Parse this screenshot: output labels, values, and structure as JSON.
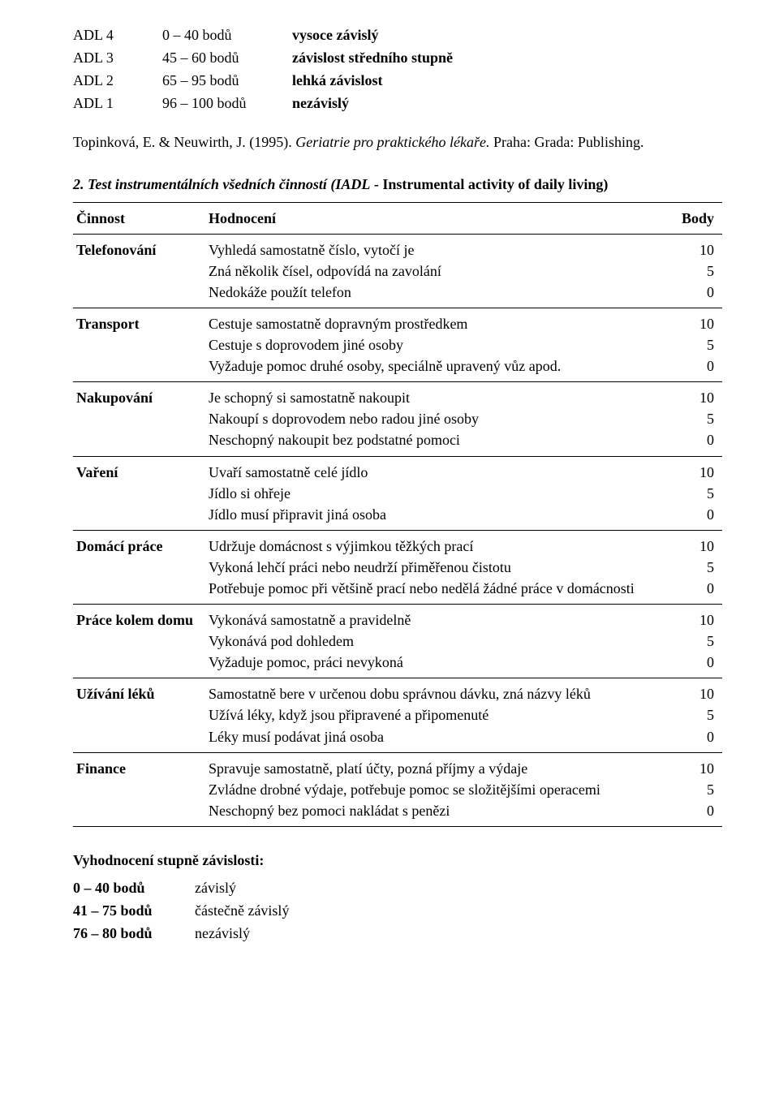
{
  "adl_levels": [
    {
      "code": "ADL 4",
      "range": "0 – 40 bodů",
      "label": "vysoce závislý"
    },
    {
      "code": "ADL 3",
      "range": "45 – 60 bodů",
      "label": "závislost středního stupně"
    },
    {
      "code": "ADL 2",
      "range": "65 – 95 bodů",
      "label": "lehká závislost"
    },
    {
      "code": "ADL 1",
      "range": "96 – 100 bodů",
      "label": "nezávislý"
    }
  ],
  "citation": {
    "authors": "Topinková, E. & Neuwirth, J. (1995). ",
    "title_italic": "Geriatrie pro praktického lékaře.",
    "rest": " Praha: Grada: Publishing."
  },
  "iadl": {
    "heading_number_italic": "2. Test instrumentálních všedních činností (IADL",
    "heading_rest_bold": " - Instrumental activity of daily living)",
    "header": {
      "c1": "Činnost",
      "c2": "Hodnocení",
      "c3": "Body"
    },
    "rows": [
      {
        "activity": "Telefonování",
        "lines": [
          "Vyhledá samostatně číslo, vytočí je",
          "Zná několik čísel, odpovídá na zavolání",
          "Nedokáže použít telefon"
        ],
        "scores": [
          "10",
          "5",
          "0"
        ]
      },
      {
        "activity": "Transport",
        "lines": [
          "Cestuje samostatně dopravným prostředkem",
          "Cestuje s doprovodem jiné osoby",
          "Vyžaduje pomoc druhé osoby, speciálně upravený vůz apod."
        ],
        "scores": [
          "10",
          "5",
          "0"
        ]
      },
      {
        "activity": "Nakupování",
        "lines": [
          "Je schopný si samostatně nakoupit",
          "Nakoupí s doprovodem nebo radou jiné osoby",
          "Neschopný nakoupit bez podstatné pomoci"
        ],
        "scores": [
          "10",
          "5",
          "0"
        ]
      },
      {
        "activity": "Vaření",
        "lines": [
          "Uvaří samostatně celé jídlo",
          "Jídlo si ohřeje",
          "Jídlo musí připravit jiná osoba"
        ],
        "scores": [
          "10",
          "5",
          "0"
        ]
      },
      {
        "activity": "Domácí práce",
        "lines": [
          "Udržuje domácnost s výjimkou těžkých prací",
          "Vykoná lehčí práci nebo neudrží přiměřenou čistotu",
          "Potřebuje pomoc při většině prací nebo nedělá žádné práce v domácnosti"
        ],
        "scores": [
          "10",
          "5",
          "0"
        ]
      },
      {
        "activity": "Práce kolem domu",
        "lines": [
          "Vykonává samostatně a pravidelně",
          "Vykonává pod dohledem",
          "Vyžaduje pomoc, práci nevykoná"
        ],
        "scores": [
          "10",
          "5",
          "0"
        ]
      },
      {
        "activity": "Užívání léků",
        "lines": [
          "Samostatně bere v určenou dobu správnou dávku, zná názvy léků",
          "Užívá léky, když jsou připravené a připomenuté",
          "Léky musí podávat jiná osoba"
        ],
        "scores": [
          "10",
          "",
          "5",
          "0"
        ]
      },
      {
        "activity": "Finance",
        "lines": [
          "Spravuje samostatně, platí účty, pozná příjmy a výdaje",
          "Zvládne drobné výdaje, potřebuje pomoc se složitějšími operacemi",
          "Neschopný bez pomoci nakládat s penězi"
        ],
        "scores": [
          "10",
          "5",
          "",
          "0"
        ]
      }
    ]
  },
  "evaluation": {
    "title": "Vyhodnocení stupně závislosti:",
    "rows": [
      {
        "range": "0 – 40 bodů",
        "label": "závislý"
      },
      {
        "range": "41 – 75 bodů",
        "label": "částečně závislý"
      },
      {
        "range": "76 – 80 bodů",
        "label": "nezávislý"
      }
    ]
  }
}
